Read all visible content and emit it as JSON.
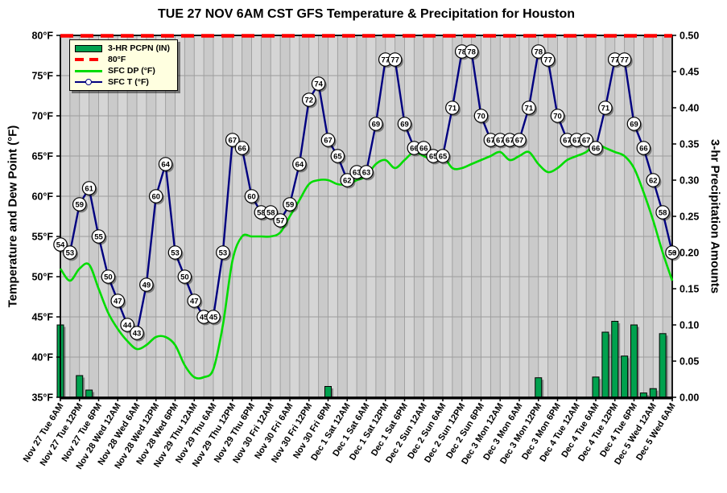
{
  "title": "TUE 27 NOV 6AM CST GFS Temperature & Precipitation for Houston",
  "axes": {
    "left_title": "Temperature and Dew Point (°F)",
    "right_title": "3-hr Precipitation Amounts",
    "left_ticks": [
      "80°F",
      "75°F",
      "70°F",
      "65°F",
      "60°F",
      "55°F",
      "50°F",
      "45°F",
      "40°F",
      "35°F"
    ],
    "right_ticks": [
      "0.50",
      "0.45",
      "0.40",
      "0.35",
      "0.30",
      "0.25",
      "0.20",
      "0.15",
      "0.10",
      "0.05",
      "0.00"
    ]
  },
  "legend": {
    "items": [
      {
        "label": "3-HR PCPN  (IN)",
        "type": "bar",
        "color": "#00a14e"
      },
      {
        "label": "80°F",
        "type": "dashed-line",
        "color": "#ff0000"
      },
      {
        "label": "SFC DP (°F)",
        "type": "line",
        "color": "#00dc00"
      },
      {
        "label": "SFC T (°F)",
        "type": "line-marker",
        "color": "#000080"
      }
    ]
  },
  "colors": {
    "temp_line": "#000080",
    "dewpoint_line": "#00dc00",
    "pcpn_bar": "#00a14e",
    "ref_line": "#ff0000",
    "plot_bg": "#cacaca",
    "plot_stripe": "#d5d5d5",
    "grid": "#9c9c9c",
    "legend_bg": "#ffffe0"
  },
  "chart_data": {
    "type": "meteogram (line + bar)",
    "x_step_hours": 3,
    "x_tick_labels": [
      "Nov 27 Tue 6AM",
      "Nov 27 Tue 12PM",
      "Nov 27 Tue 6PM",
      "Nov 28 Wed 12AM",
      "Nov 28 Wed 6AM",
      "Nov 28 Wed 12PM",
      "Nov 28 Wed 6PM",
      "Nov 29 Thu 12AM",
      "Nov 29 Thu 6AM",
      "Nov 29 Thu 12PM",
      "Nov 29 Thu 6PM",
      "Nov 30 Fri 12AM",
      "Nov 30 Fri 6AM",
      "Nov 30 Fri 12PM",
      "Nov 30 Fri 6PM",
      "Dec 1 Sat 12AM",
      "Dec 1 Sat 6AM",
      "Dec 1 Sat 12PM",
      "Dec 1 Sat 6PM",
      "Dec 2 Sun 12AM",
      "Dec 2 Sun 6AM",
      "Dec 2 Sun 12PM",
      "Dec 2 Sun 6PM",
      "Dec 3 Mon 12AM",
      "Dec 3 Mon 6AM",
      "Dec 3 Mon 12PM",
      "Dec 3 Mon 6PM",
      "Dec 4 Tue 12AM",
      "Dec 4 Tue 6AM",
      "Dec 4 Tue 12PM",
      "Dec 4 Tue 6PM",
      "Dec 5 Wed 12AM",
      "Dec 5 Wed 6AM"
    ],
    "points_per_x_label": 2,
    "y_left": {
      "min": 35,
      "max": 80,
      "tick_step": 5,
      "unit": "°F"
    },
    "y_right": {
      "min": 0.0,
      "max": 0.5,
      "tick_step": 0.05,
      "unit": "IN"
    },
    "ref_line": {
      "name": "80°F",
      "value": 80,
      "color": "#ff0000"
    },
    "series": [
      {
        "name": "SFC T (°F)",
        "type": "line",
        "color": "#000080",
        "markers": "numbered-circles",
        "values": [
          54,
          53,
          59,
          61,
          55,
          50,
          47,
          44,
          43,
          49,
          60,
          64,
          53,
          50,
          47,
          45,
          45,
          53,
          67,
          66,
          60,
          58,
          58,
          57,
          59,
          64,
          72,
          74,
          67,
          65,
          62,
          63,
          63,
          69,
          77,
          77,
          69,
          66,
          66,
          65,
          65,
          71,
          78,
          78,
          70,
          67,
          67,
          67,
          67,
          71,
          78,
          77,
          70,
          67,
          67,
          67,
          66,
          71,
          77,
          77,
          69,
          66,
          62,
          58,
          53
        ]
      },
      {
        "name": "SFC DP (°F)",
        "type": "line",
        "color": "#00dc00",
        "markers": "none",
        "values": [
          51,
          49.5,
          51,
          51.5,
          48.5,
          45.5,
          43.5,
          42,
          41,
          41.5,
          42.5,
          42.5,
          41.5,
          39,
          37.5,
          37.5,
          38.5,
          44,
          52,
          55,
          55,
          55,
          55,
          55.5,
          57.5,
          59.5,
          61.5,
          62,
          62,
          61.5,
          61.5,
          62,
          62.5,
          64,
          64.5,
          63.5,
          64.5,
          65.5,
          65,
          64.5,
          65,
          63.5,
          63.5,
          64,
          64.5,
          65,
          65.5,
          64.5,
          65,
          65.5,
          64,
          63,
          63.5,
          64.5,
          65,
          65.5,
          66.5,
          66,
          65.5,
          65,
          63.5,
          60.5,
          57,
          53,
          49.5
        ]
      },
      {
        "name": "3-HR PCPN (IN)",
        "type": "bar",
        "color": "#00a14e",
        "axis": "right",
        "values": [
          0.1,
          0,
          0.03,
          0.01,
          0,
          0,
          0,
          0,
          0,
          0,
          0,
          0,
          0,
          0,
          0,
          0,
          0,
          0,
          0,
          0,
          0,
          0,
          0,
          0,
          0,
          0,
          0,
          0,
          0.015,
          0,
          0,
          0,
          0,
          0,
          0,
          0,
          0,
          0,
          0,
          0,
          0,
          0,
          0,
          0,
          0,
          0,
          0,
          0,
          0,
          0,
          0.027,
          0,
          0,
          0,
          0,
          0,
          0.028,
          0.09,
          0.105,
          0.057,
          0.1,
          0.006,
          0.012,
          0.088,
          0
        ]
      }
    ]
  }
}
